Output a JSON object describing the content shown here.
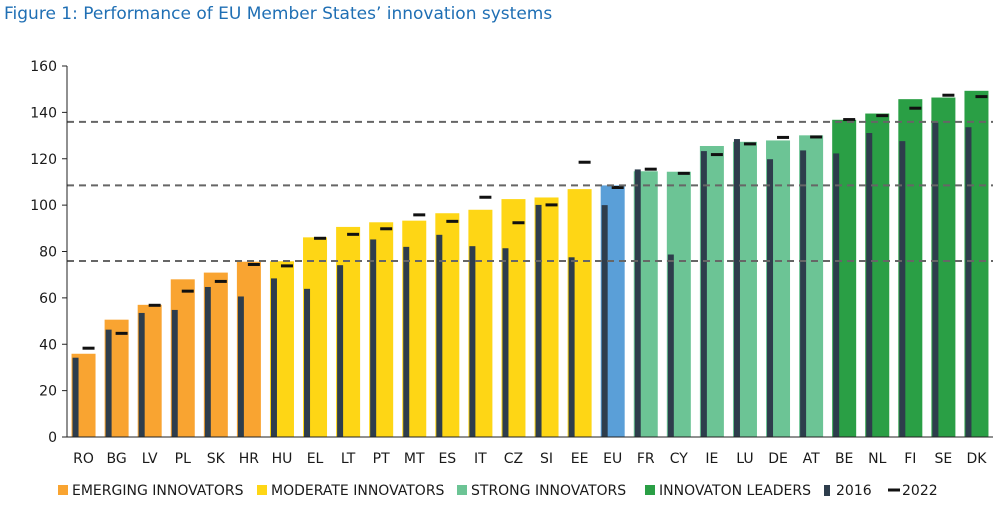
{
  "title": "Figure 1: Performance of EU Member States’ innovation systems",
  "colors": {
    "emerging": "#f9a431",
    "moderate": "#fed615",
    "eu": "#5a9fd8",
    "strong": "#6cc495",
    "leaders": "#2a9f45",
    "bar2016": "#2e3d4c",
    "marker2022": "#111111",
    "refline": "#666666",
    "axis": "#222222",
    "title": "#1f6fb4"
  },
  "chart_data": {
    "type": "bar",
    "title": "Figure 1: Performance of EU Member States’ innovation systems",
    "xlabel": "",
    "ylabel": "",
    "ylim": [
      0,
      160
    ],
    "yticks": [
      0,
      20,
      40,
      60,
      80,
      100,
      120,
      140,
      160
    ],
    "grid": false,
    "legend_position": "bottom",
    "categories": [
      "RO",
      "BG",
      "LV",
      "PL",
      "SK",
      "HR",
      "HU",
      "EL",
      "LT",
      "PT",
      "MT",
      "ES",
      "IT",
      "CZ",
      "SI",
      "EE",
      "EU",
      "FR",
      "CY",
      "IE",
      "LU",
      "DE",
      "AT",
      "BE",
      "NL",
      "FI",
      "SE",
      "DK"
    ],
    "groups": [
      "emerging",
      "emerging",
      "emerging",
      "emerging",
      "emerging",
      "emerging",
      "moderate",
      "moderate",
      "moderate",
      "moderate",
      "moderate",
      "moderate",
      "moderate",
      "moderate",
      "moderate",
      "moderate",
      "eu",
      "strong",
      "strong",
      "strong",
      "strong",
      "strong",
      "strong",
      "leaders",
      "leaders",
      "leaders",
      "leaders",
      "leaders"
    ],
    "series": [
      {
        "name": "",
        "role": "current",
        "values": [
          35.9,
          50.6,
          57.0,
          68.0,
          70.9,
          75.6,
          75.8,
          86.1,
          90.6,
          92.6,
          93.3,
          96.5,
          98.0,
          102.6,
          103.3,
          106.9,
          108.5,
          114.6,
          114.4,
          125.5,
          127.3,
          127.9,
          130.1,
          136.8,
          139.5,
          145.7,
          146.4,
          149.3
        ]
      },
      {
        "name": "2016",
        "role": "thin_bar",
        "values": [
          34.2,
          46.3,
          53.5,
          54.8,
          64.7,
          60.6,
          68.4,
          63.9,
          74.1,
          85.2,
          82.0,
          87.2,
          82.3,
          81.4,
          100.1,
          77.5,
          100.0,
          115.4,
          78.7,
          123.3,
          128.5,
          119.8,
          123.6,
          122.3,
          131.1,
          127.6,
          135.6,
          133.6
        ]
      },
      {
        "name": "2022",
        "role": "marker",
        "values": [
          38.3,
          44.7,
          56.8,
          62.9,
          67.1,
          74.4,
          73.8,
          85.7,
          87.4,
          89.8,
          95.8,
          93.0,
          103.4,
          92.4,
          100.1,
          118.5,
          107.6,
          115.5,
          113.7,
          121.8,
          126.4,
          129.2,
          129.4,
          136.9,
          138.6,
          141.8,
          147.4,
          146.8
        ]
      }
    ],
    "reference_lines": [
      75.9,
      108.5,
      135.9
    ],
    "legend": [
      {
        "key": "emerging",
        "label": "EMERGING INNOVATORS"
      },
      {
        "key": "moderate",
        "label": "MODERATE INNOVATORS"
      },
      {
        "key": "strong",
        "label": "STRONG INNOVATORS"
      },
      {
        "key": "leaders",
        "label": "INNOVATON LEADERS"
      },
      {
        "key": "bar2016",
        "label": "2016"
      },
      {
        "key": "marker2022",
        "label": "2022"
      }
    ]
  }
}
